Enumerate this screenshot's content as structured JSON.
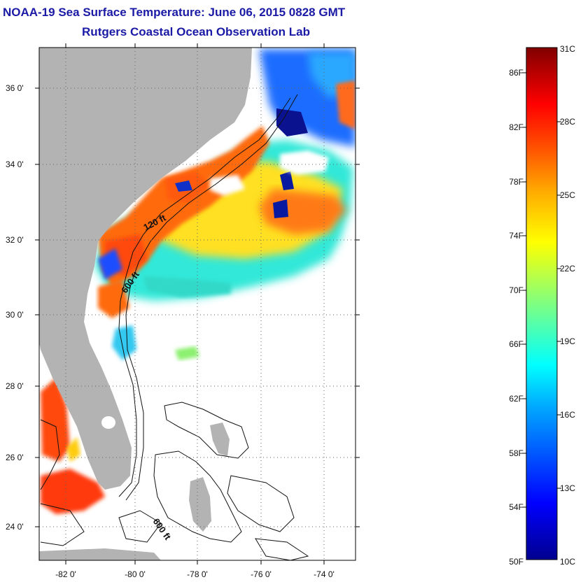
{
  "header": {
    "title": "NOAA-19 Sea Surface Temperature:  June 06, 2015 0828 GMT",
    "subtitle": "Rutgers Coastal Ocean Observation Lab"
  },
  "map": {
    "lat_range": [
      23,
      37.1
    ],
    "lon_range": [
      -83,
      -73
    ],
    "lat_labels": [
      "36 0'",
      "34 0'",
      "32 0'",
      "30 0'",
      "28 0'",
      "26 0'",
      "24 0'"
    ],
    "lon_labels": [
      "-82 0'",
      "-80 0'",
      "-78 0'",
      "-76 0'",
      "-74 0'"
    ],
    "isobath_labels": [
      "120 ft",
      "600 ft",
      "600 ft"
    ],
    "colors": {
      "land": "#b3b3b3",
      "no_data": "#ffffff",
      "isobath": "#111111"
    }
  },
  "colorbar": {
    "fahrenheit_labels": [
      "86F",
      "82F",
      "78F",
      "74F",
      "70F",
      "66F",
      "62F",
      "58F",
      "54F",
      "50F"
    ],
    "celsius_labels": [
      "31C",
      "28C",
      "25C",
      "22C",
      "19C",
      "16C",
      "13C",
      "10C"
    ],
    "range_f": [
      50,
      88
    ],
    "colormap": [
      "#00008f",
      "#0000ff",
      "#00aaff",
      "#00ffff",
      "#7fff80",
      "#ffff00",
      "#ffaa00",
      "#ff5500",
      "#ff0000",
      "#800000"
    ]
  }
}
